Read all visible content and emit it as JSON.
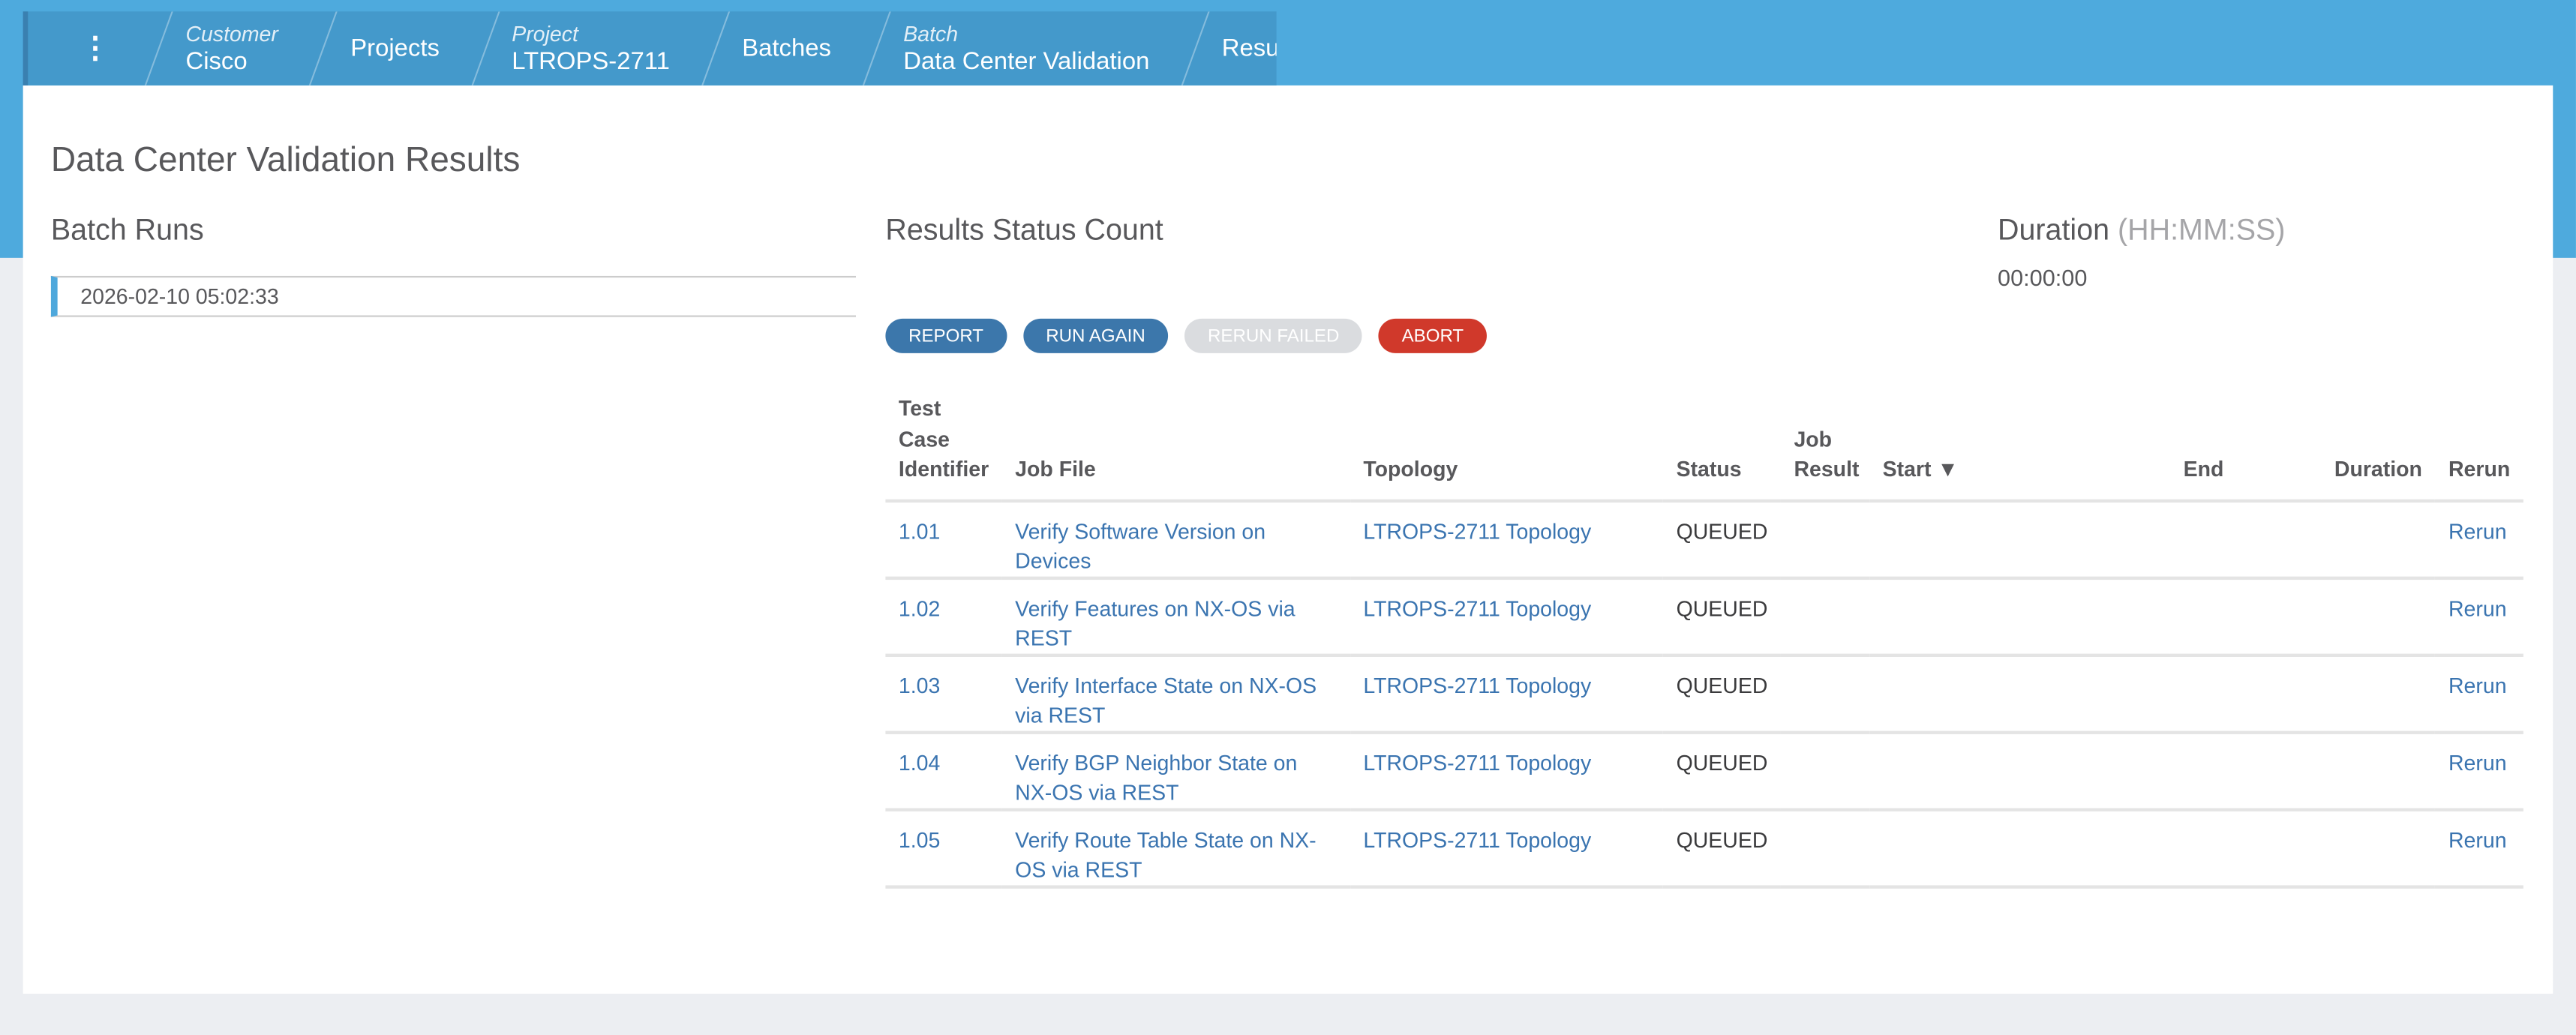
{
  "breadcrumb": [
    {
      "label": "Customer",
      "value": "Cisco"
    },
    {
      "label": "",
      "value": "Projects"
    },
    {
      "label": "Project",
      "value": "LTROPS-2711"
    },
    {
      "label": "",
      "value": "Batches"
    },
    {
      "label": "Batch",
      "value": "Data Center Validation"
    },
    {
      "label": "",
      "value": "Results"
    }
  ],
  "page_title": "Data Center Validation Results",
  "batch_runs": {
    "title": "Batch Runs",
    "items": [
      "2026-02-10 05:02:33"
    ]
  },
  "status_count": {
    "title": "Results Status Count"
  },
  "duration": {
    "title": "Duration",
    "unit": "(HH:MM:SS)",
    "value": "00:00:00"
  },
  "buttons": {
    "report": "REPORT",
    "run_again": "RUN AGAIN",
    "rerun_failed": "RERUN FAILED",
    "abort": "ABORT"
  },
  "colors": {
    "accent": "#4eaadd",
    "primary_button": "#3c77ab",
    "abort": "#d0392b",
    "link": "#3a74b0"
  },
  "table": {
    "columns": [
      "Test Case Identifier",
      "Job File",
      "Topology",
      "Status",
      "Job Result",
      "Start ▼",
      "End",
      "Duration",
      "Rerun"
    ],
    "sort": {
      "column": "Start",
      "direction": "descending"
    },
    "rows": [
      {
        "id": "1.01",
        "job": "Verify Software Version on Devices",
        "topology": "LTROPS-2711 Topology",
        "status": "QUEUED",
        "result": "",
        "start": "",
        "end": "",
        "duration": "",
        "rerun": "Rerun"
      },
      {
        "id": "1.02",
        "job": "Verify Features on NX-OS via REST",
        "topology": "LTROPS-2711 Topology",
        "status": "QUEUED",
        "result": "",
        "start": "",
        "end": "",
        "duration": "",
        "rerun": "Rerun"
      },
      {
        "id": "1.03",
        "job": "Verify Interface State on NX-OS via REST",
        "topology": "LTROPS-2711 Topology",
        "status": "QUEUED",
        "result": "",
        "start": "",
        "end": "",
        "duration": "",
        "rerun": "Rerun"
      },
      {
        "id": "1.04",
        "job": "Verify BGP Neighbor State on NX-OS via REST",
        "topology": "LTROPS-2711 Topology",
        "status": "QUEUED",
        "result": "",
        "start": "",
        "end": "",
        "duration": "",
        "rerun": "Rerun"
      },
      {
        "id": "1.05",
        "job": "Verify Route Table State on NX-OS via REST",
        "topology": "LTROPS-2711 Topology",
        "status": "QUEUED",
        "result": "",
        "start": "",
        "end": "",
        "duration": "",
        "rerun": "Rerun"
      }
    ]
  }
}
